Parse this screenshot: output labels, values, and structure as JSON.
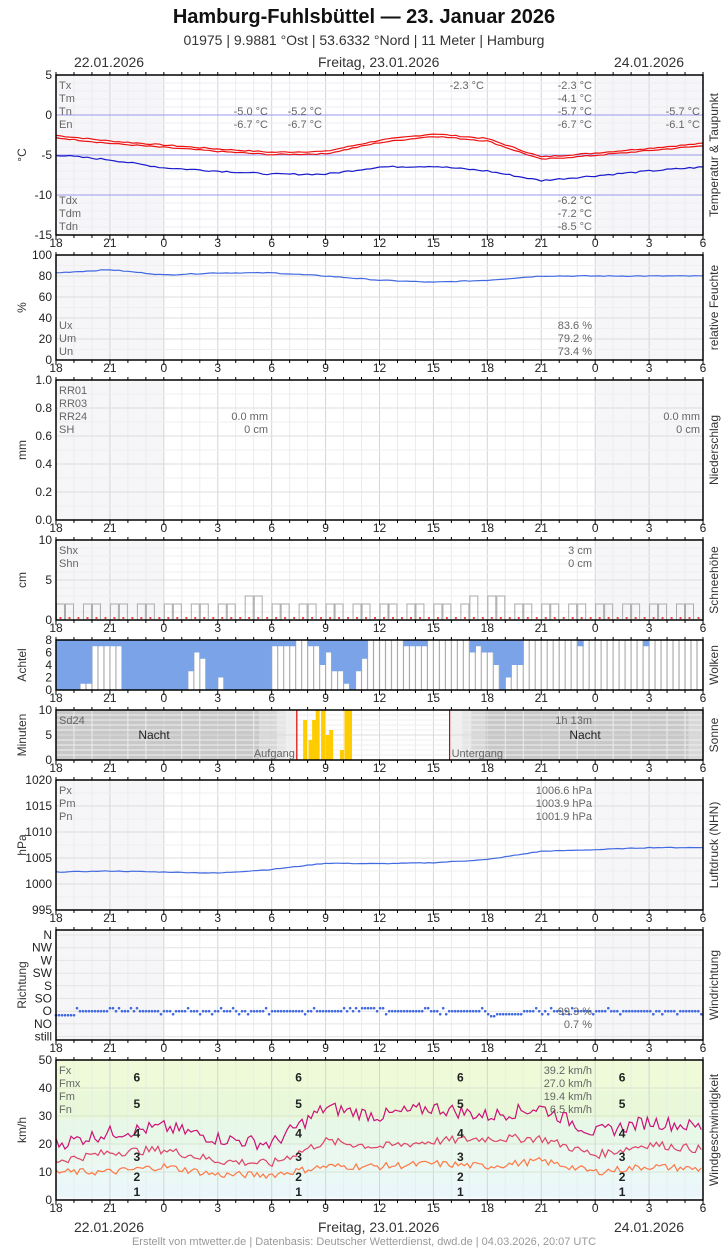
{
  "header": {
    "title": "Hamburg-Fuhlsbüttel  —  23. Januar 2026",
    "subtitle": "01975  |  9.9881 °Ost  |  53.6332 °Nord  |  11 Meter  |  Hamburg",
    "date_left": "22.01.2026",
    "date_center": "Freitag, 23.01.2026",
    "date_right": "24.01.2026"
  },
  "footer": "Erstellt von mtwetter.de | Datenbasis: Deutscher Wetterdienst, dwd.de | 04.03.2026, 20:07 UTC",
  "x_ticks": [
    "18",
    "21",
    "0",
    "3",
    "6",
    "9",
    "12",
    "15",
    "18",
    "21",
    "0",
    "3",
    "6"
  ],
  "colors": {
    "temp": "#ee1111",
    "dew": "#1a1acc",
    "humidity": "#4169e1",
    "cloud": "#7ba3e8",
    "sun": "#ffcc00",
    "fx": "#cc1177",
    "fm": "#dd4466",
    "fn": "#ff7744",
    "night": "#c8c8c8",
    "sunmark": "#dd0000"
  },
  "panels": {
    "temp": {
      "side_label": "Temperatur & Taupunkt",
      "y_label": "°C",
      "y_ticks": [
        "5",
        "0",
        "-5",
        "-10",
        "-15"
      ],
      "legend_top": [
        "Tx",
        "Tm",
        "Tn",
        "En"
      ],
      "legend_bottom": [
        "Tdx",
        "Tdm",
        "Tdn"
      ],
      "v_day1_a": [
        "-5.0 °C",
        "-6.7 °C"
      ],
      "v_day1_b": [
        "-5.2 °C",
        "-6.7 °C"
      ],
      "v_mid": "-2.3 °C",
      "v_day2": [
        "-2.3 °C",
        "-4.1 °C",
        "-5.7 °C",
        "-6.7 °C"
      ],
      "v_day3": [
        "-5.7 °C",
        "-6.1 °C"
      ],
      "v_dew": [
        "-6.2 °C",
        "-7.2 °C",
        "-8.5 °C"
      ]
    },
    "humidity": {
      "side_label": "relative Feuchte",
      "y_label": "%",
      "y_ticks": [
        "100",
        "80",
        "60",
        "40",
        "20",
        "0"
      ],
      "legend": [
        "Ux",
        "Um",
        "Un"
      ],
      "values": [
        "83.6 %",
        "79.2 %",
        "73.4 %"
      ]
    },
    "precip": {
      "side_label": "Niederschlag",
      "y_label": "mm",
      "y_ticks": [
        "1.0",
        "0.8",
        "0.6",
        "0.4",
        "0.2",
        "0.0"
      ],
      "legend": [
        "RR01",
        "RR03",
        "RR24",
        "SH"
      ],
      "values_a": [
        "0.0 mm",
        "0 cm"
      ],
      "values_b": [
        "0.0 mm",
        "0 cm"
      ]
    },
    "snow": {
      "side_label": "Schneehöhe",
      "y_label": "cm",
      "y_ticks": [
        "10",
        "5",
        "0"
      ],
      "legend": [
        "Shx",
        "Shn"
      ],
      "values": [
        "3 cm",
        "0 cm"
      ]
    },
    "clouds": {
      "side_label": "Wolken",
      "y_label": "Achtel",
      "y_ticks": [
        "8",
        "6",
        "4",
        "2",
        "0"
      ]
    },
    "sun": {
      "side_label": "Sonne",
      "y_label": "Minuten",
      "y_ticks": [
        "10",
        "5",
        "0"
      ],
      "legend": "Sd24",
      "total": "1h 13m",
      "night_left": "Nacht",
      "night_right": "Nacht",
      "sunrise": "Aufgang",
      "sunset": "Untergang"
    },
    "pressure": {
      "side_label": "Luftdruck (NHN)",
      "y_label": "hPa",
      "y_ticks": [
        "1020",
        "1015",
        "1010",
        "1005",
        "1000",
        "995"
      ],
      "legend": [
        "Px",
        "Pm",
        "Pn"
      ],
      "values": [
        "1006.6 hPa",
        "1003.9 hPa",
        "1001.9 hPa"
      ]
    },
    "wind_dir": {
      "side_label": "Windrichtung",
      "y_label": "Richtung",
      "y_ticks": [
        "N",
        "NW",
        "W",
        "SW",
        "S",
        "SO",
        "O",
        "NO",
        "still"
      ],
      "values": [
        "99.3 %",
        "0.7 %"
      ]
    },
    "wind_speed": {
      "side_label": "Windgeschwindigkeit",
      "y_label": "km/h",
      "y_ticks": [
        "50",
        "40",
        "30",
        "20",
        "10",
        "0"
      ],
      "legend": [
        "Fx",
        "Fmx",
        "Fm",
        "Fn"
      ],
      "values": [
        "39.2 km/h",
        "27.0 km/h",
        "19.4 km/h",
        "6.5 km/h"
      ],
      "beaufort": [
        "6",
        "5",
        "4",
        "3",
        "2",
        "1"
      ]
    }
  },
  "chart_data": [
    {
      "type": "line",
      "title": "Temperatur & Taupunkt",
      "ylabel": "°C",
      "ylim": [
        -15,
        5
      ],
      "x": [
        "18",
        "21",
        "0",
        "3",
        "6",
        "9",
        "12",
        "15",
        "18",
        "21",
        "0",
        "3",
        "6"
      ],
      "series": [
        {
          "name": "Temperatur",
          "values": [
            -2.8,
            -3.5,
            -4.0,
            -4.5,
            -4.9,
            -4.8,
            -3.4,
            -2.6,
            -3.2,
            -5.5,
            -5.0,
            -4.4,
            -3.8
          ]
        },
        {
          "name": "Taupunkt",
          "values": [
            -5.0,
            -5.6,
            -6.6,
            -7.0,
            -7.4,
            -7.4,
            -6.5,
            -6.4,
            -7.0,
            -8.2,
            -7.6,
            -7.0,
            -6.5
          ]
        }
      ]
    },
    {
      "type": "line",
      "title": "relative Feuchte",
      "ylabel": "%",
      "ylim": [
        0,
        100
      ],
      "x": [
        "18",
        "21",
        "0",
        "3",
        "6",
        "9",
        "12",
        "15",
        "18",
        "21",
        "0",
        "3",
        "6"
      ],
      "series": [
        {
          "name": "Feuchte",
          "values": [
            83,
            86,
            81,
            83,
            83,
            80,
            76,
            74,
            76,
            80,
            80,
            80,
            80
          ]
        }
      ]
    },
    {
      "type": "bar",
      "title": "Niederschlag",
      "ylabel": "mm",
      "ylim": [
        0,
        1
      ],
      "values": [
        0
      ]
    },
    {
      "type": "bar",
      "title": "Schneehöhe",
      "ylabel": "cm",
      "ylim": [
        0,
        10
      ],
      "x": [
        "18",
        "21",
        "0",
        "3",
        "6",
        "9",
        "12",
        "15",
        "18",
        "21",
        "0",
        "3",
        "6"
      ],
      "values": [
        2,
        2,
        2,
        2,
        2,
        2,
        2,
        2,
        2,
        2,
        3,
        2,
        2
      ]
    },
    {
      "type": "bar",
      "title": "Wolken",
      "ylabel": "Achtel",
      "ylim": [
        0,
        8
      ],
      "x": [
        "18",
        "21",
        "0",
        "3",
        "6",
        "9",
        "12",
        "15",
        "18",
        "21",
        "0",
        "3",
        "6"
      ],
      "values": [
        7,
        1,
        8,
        8,
        3,
        0,
        1,
        1,
        0,
        0,
        0,
        0,
        0
      ]
    },
    {
      "type": "bar",
      "title": "Sonne",
      "ylabel": "Minuten",
      "ylim": [
        0,
        10
      ],
      "total": "1h 13m",
      "sunrise_hour": 7.4,
      "sunset_hour": 15.9
    },
    {
      "type": "line",
      "title": "Luftdruck (NHN)",
      "ylabel": "hPa",
      "ylim": [
        995,
        1020
      ],
      "x": [
        "18",
        "21",
        "0",
        "3",
        "6",
        "9",
        "12",
        "15",
        "18",
        "21",
        "0",
        "3",
        "6"
      ],
      "series": [
        {
          "name": "Luftdruck",
          "values": [
            1002.3,
            1002.5,
            1002.3,
            1002.1,
            1002.8,
            1004.0,
            1003.9,
            1004.1,
            1004.7,
            1006.3,
            1006.6,
            1007.0,
            1007.0
          ]
        }
      ]
    },
    {
      "type": "scatter",
      "title": "Windrichtung",
      "ylabel": "Richtung",
      "categories": [
        "N",
        "NW",
        "W",
        "SW",
        "S",
        "SO",
        "O",
        "NO",
        "still"
      ],
      "share": {
        "O": 99.3,
        "NO": 0.7
      }
    },
    {
      "type": "line",
      "title": "Windgeschwindigkeit",
      "ylabel": "km/h",
      "ylim": [
        0,
        50
      ],
      "x": [
        "18",
        "21",
        "0",
        "3",
        "6",
        "9",
        "12",
        "15",
        "18",
        "21",
        "0",
        "3",
        "6"
      ],
      "series": [
        {
          "name": "Fx",
          "values": [
            20,
            24,
            26,
            22,
            20,
            33,
            30,
            33,
            30,
            33,
            24,
            28,
            26
          ]
        },
        {
          "name": "Fm",
          "values": [
            14,
            17,
            18,
            14,
            13,
            21,
            19,
            21,
            22,
            22,
            16,
            20,
            18
          ]
        },
        {
          "name": "Fn",
          "values": [
            10,
            10,
            12,
            9,
            9,
            12,
            12,
            13,
            12,
            14,
            10,
            12,
            11
          ]
        }
      ]
    }
  ]
}
